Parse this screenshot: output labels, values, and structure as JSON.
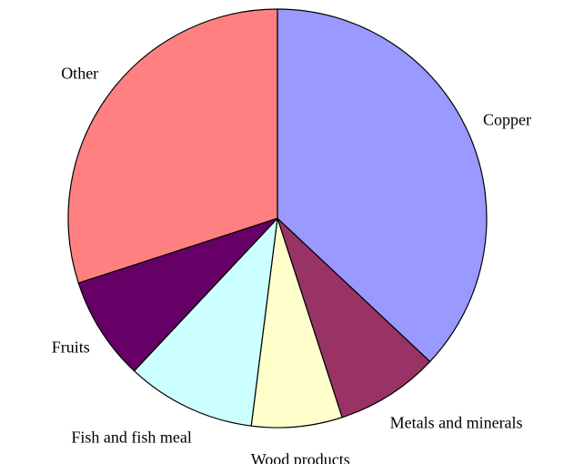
{
  "chart_data": {
    "type": "pie",
    "categories": [
      "Copper",
      "Metals and minerals",
      "Wood products",
      "Fish and fish meal",
      "Fruits",
      "Other"
    ],
    "values": [
      37,
      8,
      7,
      10,
      8,
      30
    ],
    "colors": [
      "#9999ff",
      "#993366",
      "#ffffcc",
      "#ccffff",
      "#660066",
      "#ff8080"
    ]
  }
}
